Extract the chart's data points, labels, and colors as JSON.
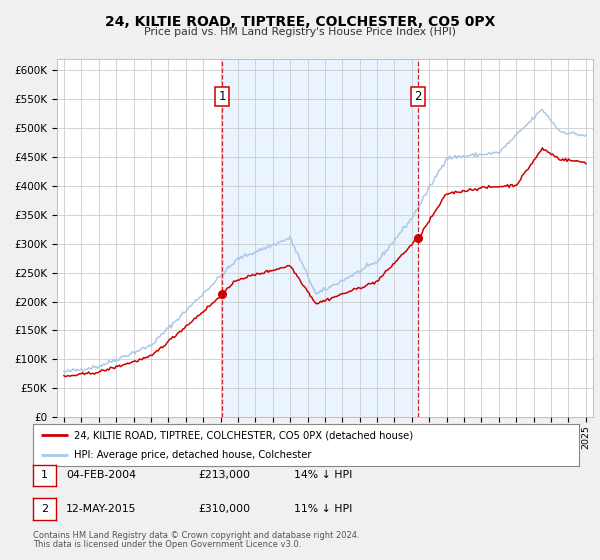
{
  "title": "24, KILTIE ROAD, TIPTREE, COLCHESTER, CO5 0PX",
  "subtitle": "Price paid vs. HM Land Registry's House Price Index (HPI)",
  "background_color": "#f0f0f0",
  "plot_bg_color": "#ffffff",
  "grid_color": "#cccccc",
  "hpi_color": "#aac8e8",
  "price_color": "#cc0000",
  "marker1_date_x": 2004.09,
  "marker2_date_x": 2015.37,
  "marker1_price": 213000,
  "marker2_price": 310000,
  "ylim_min": 0,
  "ylim_max": 620000,
  "ytick_step": 50000,
  "xmin": 1994.6,
  "xmax": 2025.4,
  "legend_label_price": "24, KILTIE ROAD, TIPTREE, COLCHESTER, CO5 0PX (detached house)",
  "legend_label_hpi": "HPI: Average price, detached house, Colchester",
  "note1_label": "1",
  "note1_date": "04-FEB-2004",
  "note1_price": "£213,000",
  "note1_hpi": "14% ↓ HPI",
  "note2_label": "2",
  "note2_date": "12-MAY-2015",
  "note2_price": "£310,000",
  "note2_hpi": "11% ↓ HPI",
  "footer1": "Contains HM Land Registry data © Crown copyright and database right 2024.",
  "footer2": "This data is licensed under the Open Government Licence v3.0."
}
